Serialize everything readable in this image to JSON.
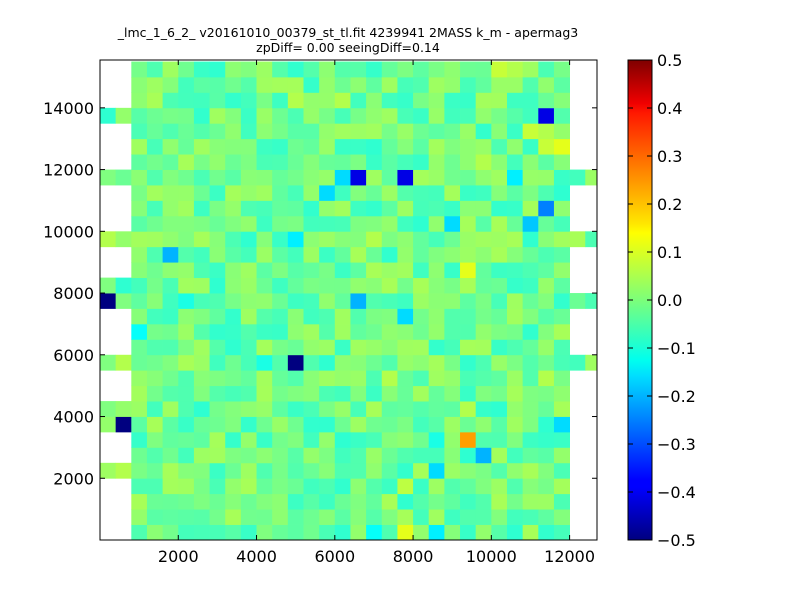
{
  "chart_data": {
    "type": "heatmap",
    "title": "_lmc_1_6_2_ v20161010_00379_st_tl.fit 4239941 2MASS k_m - apermag3",
    "subtitle": "zpDiff= 0.00 seeingDiff=0.14",
    "xlabel": "",
    "ylabel": "",
    "xlim": [
      0,
      12700
    ],
    "ylim": [
      0,
      15550
    ],
    "xticks": [
      2000,
      4000,
      6000,
      8000,
      10000,
      12000
    ],
    "yticks": [
      2000,
      4000,
      6000,
      8000,
      10000,
      12000,
      14000
    ],
    "colorbar": {
      "colormap": "jet",
      "vmin": -0.5,
      "vmax": 0.5,
      "ticks": [
        0.5,
        0.4,
        0.3,
        0.2,
        0.1,
        0.0,
        -0.1,
        -0.2,
        -0.3,
        -0.4,
        -0.5
      ],
      "tick_labels": [
        "0.5",
        "0.4",
        "0.3",
        "0.2",
        "0.1",
        "0.0",
        "−0.1",
        "−0.2",
        "−0.3",
        "−0.4",
        "−0.5"
      ]
    },
    "grid": false,
    "cell_size": [
      400,
      500
    ],
    "background_value": -0.02,
    "columns": [
      {
        "x_min": 0,
        "x_max": 800,
        "y_ranges": [
          [
            2000,
            2500
          ],
          [
            3500,
            4500
          ],
          [
            5500,
            6000
          ],
          [
            7500,
            8500
          ],
          [
            9500,
            10000
          ],
          [
            11500,
            12000
          ],
          [
            13500,
            14000
          ]
        ]
      },
      {
        "x_min": 800,
        "x_max": 12000,
        "y_ranges": [
          [
            0,
            15500
          ]
        ]
      },
      {
        "x_min": 12000,
        "x_max": 12700,
        "y_ranges": [
          [
            5500,
            6000
          ],
          [
            7500,
            8000
          ],
          [
            9500,
            10000
          ],
          [
            11500,
            12000
          ]
        ]
      }
    ],
    "cells": [
      {
        "x": 200,
        "y": 13750,
        "v": -0.08
      },
      {
        "x": 600,
        "y": 13750,
        "v": 0.02
      },
      {
        "x": 200,
        "y": 13250,
        "v": 0.02
      },
      {
        "x": 600,
        "y": 13250,
        "v": -0.1
      },
      {
        "x": 200,
        "y": 11750,
        "v": 0.0
      },
      {
        "x": 600,
        "y": 11750,
        "v": -0.02
      },
      {
        "x": 200,
        "y": 9750,
        "v": 0.05
      },
      {
        "x": 600,
        "y": 9750,
        "v": 0.02
      },
      {
        "x": 200,
        "y": 8250,
        "v": 0.0
      },
      {
        "x": 600,
        "y": 8250,
        "v": -0.08
      },
      {
        "x": 200,
        "y": 7750,
        "v": -0.5
      },
      {
        "x": 600,
        "y": 7750,
        "v": 0.0
      },
      {
        "x": 200,
        "y": 5750,
        "v": 0.0
      },
      {
        "x": 600,
        "y": 5750,
        "v": 0.05
      },
      {
        "x": 200,
        "y": 4250,
        "v": 0.0
      },
      {
        "x": 600,
        "y": 4250,
        "v": 0.02
      },
      {
        "x": 200,
        "y": 3750,
        "v": 0.02
      },
      {
        "x": 600,
        "y": 3750,
        "v": -0.5
      },
      {
        "x": 200,
        "y": 2250,
        "v": 0.03
      },
      {
        "x": 600,
        "y": 2250,
        "v": 0.05
      },
      {
        "x": 12200,
        "y": 11750,
        "v": -0.06
      },
      {
        "x": 12500,
        "y": 11750,
        "v": -0.06
      },
      {
        "x": 12200,
        "y": 9750,
        "v": 0.04
      },
      {
        "x": 12500,
        "y": 9750,
        "v": 0.04
      },
      {
        "x": 12200,
        "y": 7750,
        "v": -0.02
      },
      {
        "x": 12500,
        "y": 7750,
        "v": -0.02
      },
      {
        "x": 12200,
        "y": 5750,
        "v": -0.06
      },
      {
        "x": 12500,
        "y": 5750,
        "v": -0.06
      },
      {
        "x": 1000,
        "y": 15250,
        "v": -0.01
      },
      {
        "x": 1000,
        "y": 14750,
        "v": 0.01
      },
      {
        "x": 1400,
        "y": 14750,
        "v": 0.03
      },
      {
        "x": 2200,
        "y": 14750,
        "v": -0.06
      },
      {
        "x": 1400,
        "y": 14250,
        "v": 0.04
      },
      {
        "x": 1000,
        "y": 13750,
        "v": -0.04
      },
      {
        "x": 3000,
        "y": 14750,
        "v": -0.04
      },
      {
        "x": 5000,
        "y": 14250,
        "v": 0.05
      },
      {
        "x": 6200,
        "y": 14250,
        "v": 0.05
      },
      {
        "x": 11400,
        "y": 13750,
        "v": -0.4
      },
      {
        "x": 11400,
        "y": 13250,
        "v": 0.05
      },
      {
        "x": 11000,
        "y": 13250,
        "v": 0.07
      },
      {
        "x": 11800,
        "y": 12750,
        "v": 0.1
      },
      {
        "x": 11400,
        "y": 12750,
        "v": 0.07
      },
      {
        "x": 9800,
        "y": 12250,
        "v": 0.05
      },
      {
        "x": 10200,
        "y": 12750,
        "v": -0.05
      },
      {
        "x": 6600,
        "y": 11750,
        "v": -0.4
      },
      {
        "x": 6200,
        "y": 11750,
        "v": -0.16
      },
      {
        "x": 7800,
        "y": 11750,
        "v": -0.4
      },
      {
        "x": 5800,
        "y": 11250,
        "v": -0.16
      },
      {
        "x": 10600,
        "y": 11750,
        "v": -0.14
      },
      {
        "x": 11400,
        "y": 10750,
        "v": -0.25
      },
      {
        "x": 9000,
        "y": 10250,
        "v": -0.16
      },
      {
        "x": 11000,
        "y": 10250,
        "v": -0.18
      },
      {
        "x": 5000,
        "y": 9750,
        "v": -0.14
      },
      {
        "x": 7000,
        "y": 9750,
        "v": 0.05
      },
      {
        "x": 1800,
        "y": 9250,
        "v": -0.2
      },
      {
        "x": 9400,
        "y": 8750,
        "v": 0.1
      },
      {
        "x": 2200,
        "y": 7750,
        "v": -0.1
      },
      {
        "x": 6600,
        "y": 7750,
        "v": -0.2
      },
      {
        "x": 7800,
        "y": 7250,
        "v": -0.16
      },
      {
        "x": 1000,
        "y": 6750,
        "v": -0.12
      },
      {
        "x": 4200,
        "y": 5750,
        "v": -0.1
      },
      {
        "x": 5000,
        "y": 5750,
        "v": -0.5
      },
      {
        "x": 5800,
        "y": 5750,
        "v": -0.08
      },
      {
        "x": 7400,
        "y": 5250,
        "v": 0.05
      },
      {
        "x": 11400,
        "y": 5250,
        "v": 0.05
      },
      {
        "x": 1400,
        "y": 4250,
        "v": -0.06
      },
      {
        "x": 2600,
        "y": 4250,
        "v": -0.08
      },
      {
        "x": 9400,
        "y": 4250,
        "v": 0.05
      },
      {
        "x": 11800,
        "y": 3750,
        "v": -0.16
      },
      {
        "x": 11400,
        "y": 3750,
        "v": -0.08
      },
      {
        "x": 9400,
        "y": 3250,
        "v": 0.22
      },
      {
        "x": 8600,
        "y": 3250,
        "v": -0.1
      },
      {
        "x": 9800,
        "y": 2750,
        "v": -0.2
      },
      {
        "x": 8600,
        "y": 2250,
        "v": -0.16
      },
      {
        "x": 7800,
        "y": 1750,
        "v": 0.06
      },
      {
        "x": 10200,
        "y": 1250,
        "v": 0.04
      },
      {
        "x": 7000,
        "y": 250,
        "v": -0.12
      },
      {
        "x": 7800,
        "y": 250,
        "v": 0.1
      },
      {
        "x": 8600,
        "y": 250,
        "v": -0.14
      },
      {
        "x": 10600,
        "y": 250,
        "v": -0.08
      },
      {
        "x": 10200,
        "y": 15250,
        "v": 0.07
      },
      {
        "x": 10600,
        "y": 15250,
        "v": 0.05
      },
      {
        "x": 11000,
        "y": 15250,
        "v": 0.03
      }
    ]
  }
}
